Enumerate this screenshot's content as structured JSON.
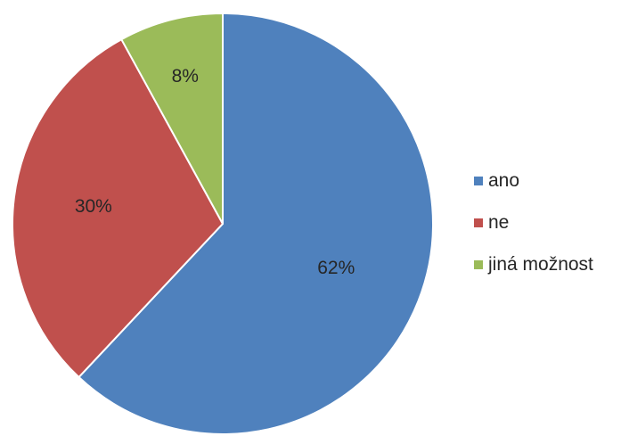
{
  "chart_data": {
    "type": "pie",
    "title": "",
    "categories": [
      "ano",
      "ne",
      "jiná možnost"
    ],
    "values": [
      62,
      30,
      8
    ],
    "labels": [
      "62%",
      "30%",
      "8%"
    ],
    "colors": [
      "#4f81bd",
      "#c0504d",
      "#9bbb59"
    ],
    "legend_position": "right",
    "start_angle": "top, clockwise"
  }
}
